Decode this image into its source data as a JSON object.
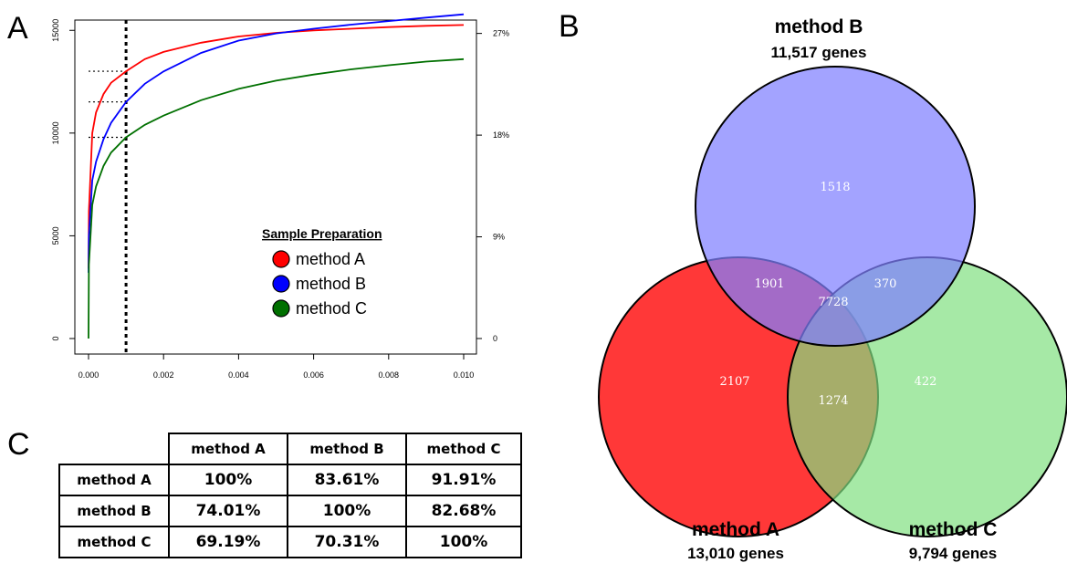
{
  "panels": {
    "a": "A",
    "b": "B",
    "c": "C"
  },
  "chart_data": [
    {
      "type": "line",
      "xlim": [
        0,
        0.01
      ],
      "ylim": [
        0,
        15500
      ],
      "x_ticks": [
        "0.000",
        "0.002",
        "0.004",
        "0.006",
        "0.008",
        "0.010"
      ],
      "y_ticks": [
        "0",
        "5000",
        "10000",
        "15000"
      ],
      "right_ticks": [
        "0",
        "9%",
        "18%",
        "27%"
      ],
      "right_tick_values": [
        0,
        4950,
        9900,
        14850
      ],
      "vertical_reference_x": 0.001,
      "legend": {
        "title": "Sample Preparation",
        "placement": "center-right"
      },
      "series": [
        {
          "name": "method A",
          "color": "#ff0000",
          "x": [
            0,
            1e-05,
            0.0001,
            0.0002,
            0.0004,
            0.0006,
            0.001,
            0.0015,
            0.002,
            0.003,
            0.004,
            0.005,
            0.006,
            0.007,
            0.008,
            0.009,
            0.01
          ],
          "y": [
            3400,
            6200,
            10000,
            11000,
            11900,
            12450,
            13010,
            13600,
            13950,
            14400,
            14700,
            14880,
            15000,
            15080,
            15160,
            15220,
            15260
          ]
        },
        {
          "name": "method B",
          "color": "#0000ff",
          "x": [
            0,
            1e-05,
            0.0001,
            0.0002,
            0.0004,
            0.0006,
            0.001,
            0.0015,
            0.002,
            0.003,
            0.004,
            0.005,
            0.006,
            0.007,
            0.008,
            0.009,
            0.01
          ],
          "y": [
            3200,
            5000,
            7700,
            8600,
            9700,
            10500,
            11517,
            12400,
            13000,
            13900,
            14500,
            14850,
            15080,
            15280,
            15450,
            15620,
            15780
          ]
        },
        {
          "name": "method C",
          "color": "#007000",
          "x": [
            0,
            1e-05,
            0.0001,
            0.0002,
            0.0004,
            0.0006,
            0.001,
            0.0015,
            0.002,
            0.003,
            0.004,
            0.005,
            0.006,
            0.007,
            0.008,
            0.009,
            0.01
          ],
          "y": [
            0,
            3600,
            6500,
            7400,
            8400,
            9050,
            9794,
            10400,
            10850,
            11600,
            12150,
            12550,
            12850,
            13100,
            13300,
            13480,
            13600
          ]
        }
      ],
      "reference_levels": [
        13010,
        11517,
        9794
      ]
    },
    {
      "type": "venn",
      "sets": [
        {
          "name": "method A",
          "subtitle": "13,010 genes",
          "color": "#ff0000"
        },
        {
          "name": "method B",
          "subtitle": "11,517 genes",
          "color": "#8080ff"
        },
        {
          "name": "method C",
          "subtitle": "9,794 genes",
          "color": "#80e080"
        }
      ],
      "regions": {
        "A_only": "2107",
        "B_only": "1518",
        "C_only": "422",
        "AB": "1901",
        "BC": "370",
        "AC": "1274",
        "ABC": "7728"
      }
    },
    {
      "type": "table",
      "columns": [
        "",
        "method A",
        "method B",
        "method C"
      ],
      "rows": [
        [
          "method A",
          "100%",
          "83.61%",
          "91.91%"
        ],
        [
          "method B",
          "74.01%",
          "100%",
          "82.68%"
        ],
        [
          "method C",
          "69.19%",
          "70.31%",
          "100%"
        ]
      ]
    }
  ]
}
